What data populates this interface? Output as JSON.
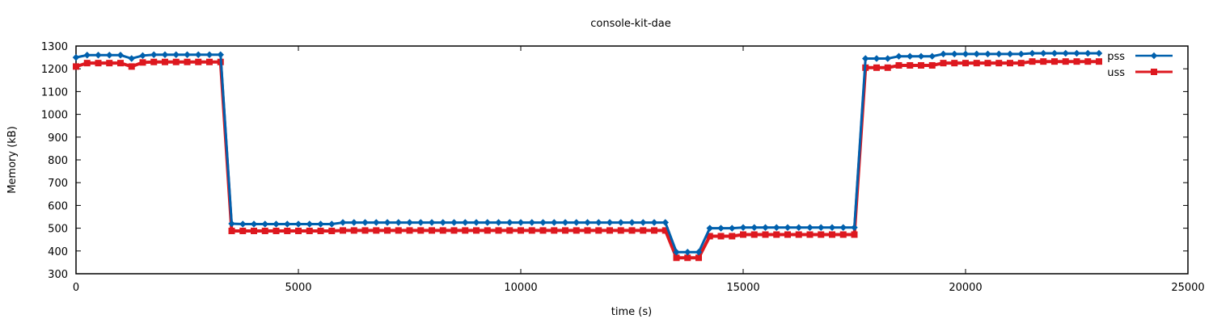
{
  "chart_data": {
    "type": "line",
    "title": "console-kit-dae",
    "xlabel": "time (s)",
    "ylabel": "Memory (kB)",
    "xlim": [
      0,
      25000
    ],
    "ylim": [
      300,
      1300
    ],
    "xticks": [
      0,
      5000,
      10000,
      15000,
      20000,
      25000
    ],
    "yticks": [
      300,
      400,
      500,
      600,
      700,
      800,
      900,
      1000,
      1100,
      1200,
      1300
    ],
    "grid": false,
    "legend_position": "top-right",
    "x": [
      0,
      250,
      500,
      750,
      1000,
      1250,
      1500,
      1750,
      2000,
      2250,
      2500,
      2750,
      3000,
      3250,
      3500,
      3750,
      4000,
      4250,
      4500,
      4750,
      5000,
      5250,
      5500,
      5750,
      6000,
      6250,
      6500,
      6750,
      7000,
      7250,
      7500,
      7750,
      8000,
      8250,
      8500,
      8750,
      9000,
      9250,
      9500,
      9750,
      10000,
      10250,
      10500,
      10750,
      11000,
      11250,
      11500,
      11750,
      12000,
      12250,
      12500,
      12750,
      13000,
      13250,
      13500,
      13750,
      14000,
      14250,
      14500,
      14750,
      15000,
      15250,
      15500,
      15750,
      16000,
      16250,
      16500,
      16750,
      17000,
      17250,
      17500,
      17750,
      18000,
      18250,
      18500,
      18750,
      19000,
      19250,
      19500,
      19750,
      20000,
      20250,
      20500,
      20750,
      21000,
      21250,
      21500,
      21750,
      22000,
      22250,
      22500,
      22750,
      23000
    ],
    "series": [
      {
        "name": "pss",
        "color": "#0060ad",
        "marker": "diamond",
        "values": [
          1250,
          1260,
          1260,
          1260,
          1260,
          1245,
          1258,
          1262,
          1262,
          1262,
          1262,
          1262,
          1262,
          1262,
          520,
          518,
          518,
          518,
          518,
          518,
          518,
          518,
          518,
          518,
          525,
          525,
          525,
          525,
          525,
          525,
          525,
          525,
          525,
          525,
          525,
          525,
          525,
          525,
          525,
          525,
          525,
          525,
          525,
          525,
          525,
          525,
          525,
          525,
          525,
          525,
          525,
          525,
          525,
          525,
          395,
          395,
          395,
          500,
          500,
          500,
          503,
          503,
          503,
          503,
          503,
          503,
          503,
          503,
          503,
          503,
          503,
          1245,
          1245,
          1245,
          1255,
          1255,
          1255,
          1255,
          1265,
          1265,
          1265,
          1265,
          1265,
          1265,
          1265,
          1265,
          1268,
          1268,
          1268,
          1268,
          1268,
          1268,
          1268
        ]
      },
      {
        "name": "uss",
        "color": "#dd181f",
        "marker": "square",
        "values": [
          1210,
          1225,
          1225,
          1225,
          1225,
          1210,
          1228,
          1230,
          1230,
          1230,
          1230,
          1230,
          1230,
          1230,
          488,
          488,
          488,
          488,
          488,
          488,
          488,
          488,
          488,
          488,
          490,
          490,
          490,
          490,
          490,
          490,
          490,
          490,
          490,
          490,
          490,
          490,
          490,
          490,
          490,
          490,
          490,
          490,
          490,
          490,
          490,
          490,
          490,
          490,
          490,
          490,
          490,
          490,
          490,
          490,
          370,
          370,
          370,
          465,
          465,
          465,
          472,
          472,
          472,
          472,
          472,
          472,
          472,
          472,
          472,
          472,
          472,
          1205,
          1205,
          1205,
          1215,
          1215,
          1215,
          1215,
          1225,
          1225,
          1225,
          1225,
          1225,
          1225,
          1225,
          1225,
          1232,
          1232,
          1232,
          1232,
          1232,
          1232,
          1232
        ]
      }
    ]
  }
}
